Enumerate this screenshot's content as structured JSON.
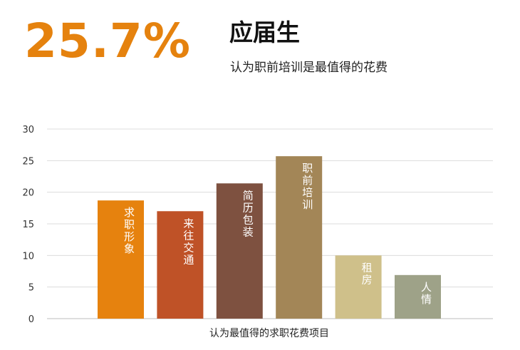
{
  "header": {
    "stat": "25.7%",
    "title": "应届生",
    "subtitle": "认为职前培训是最值得的花费"
  },
  "chart_data": {
    "type": "bar",
    "title": "",
    "xlabel": "认为最值得的求职花费项目",
    "ylabel": "",
    "ylim": [
      0,
      30
    ],
    "yticks": [
      "0",
      "5",
      "10",
      "15",
      "20",
      "25",
      "30"
    ],
    "grid": true,
    "categories": [
      "求职形象",
      "来往交通",
      "简历包装",
      "职前培训",
      "租房",
      "人情"
    ],
    "values": [
      18.7,
      17.0,
      21.4,
      25.7,
      10.0,
      6.9
    ],
    "colors": [
      "#e6820e",
      "#bf5227",
      "#7e5140",
      "#a38657",
      "#cfc08a",
      "#9ea288"
    ]
  }
}
